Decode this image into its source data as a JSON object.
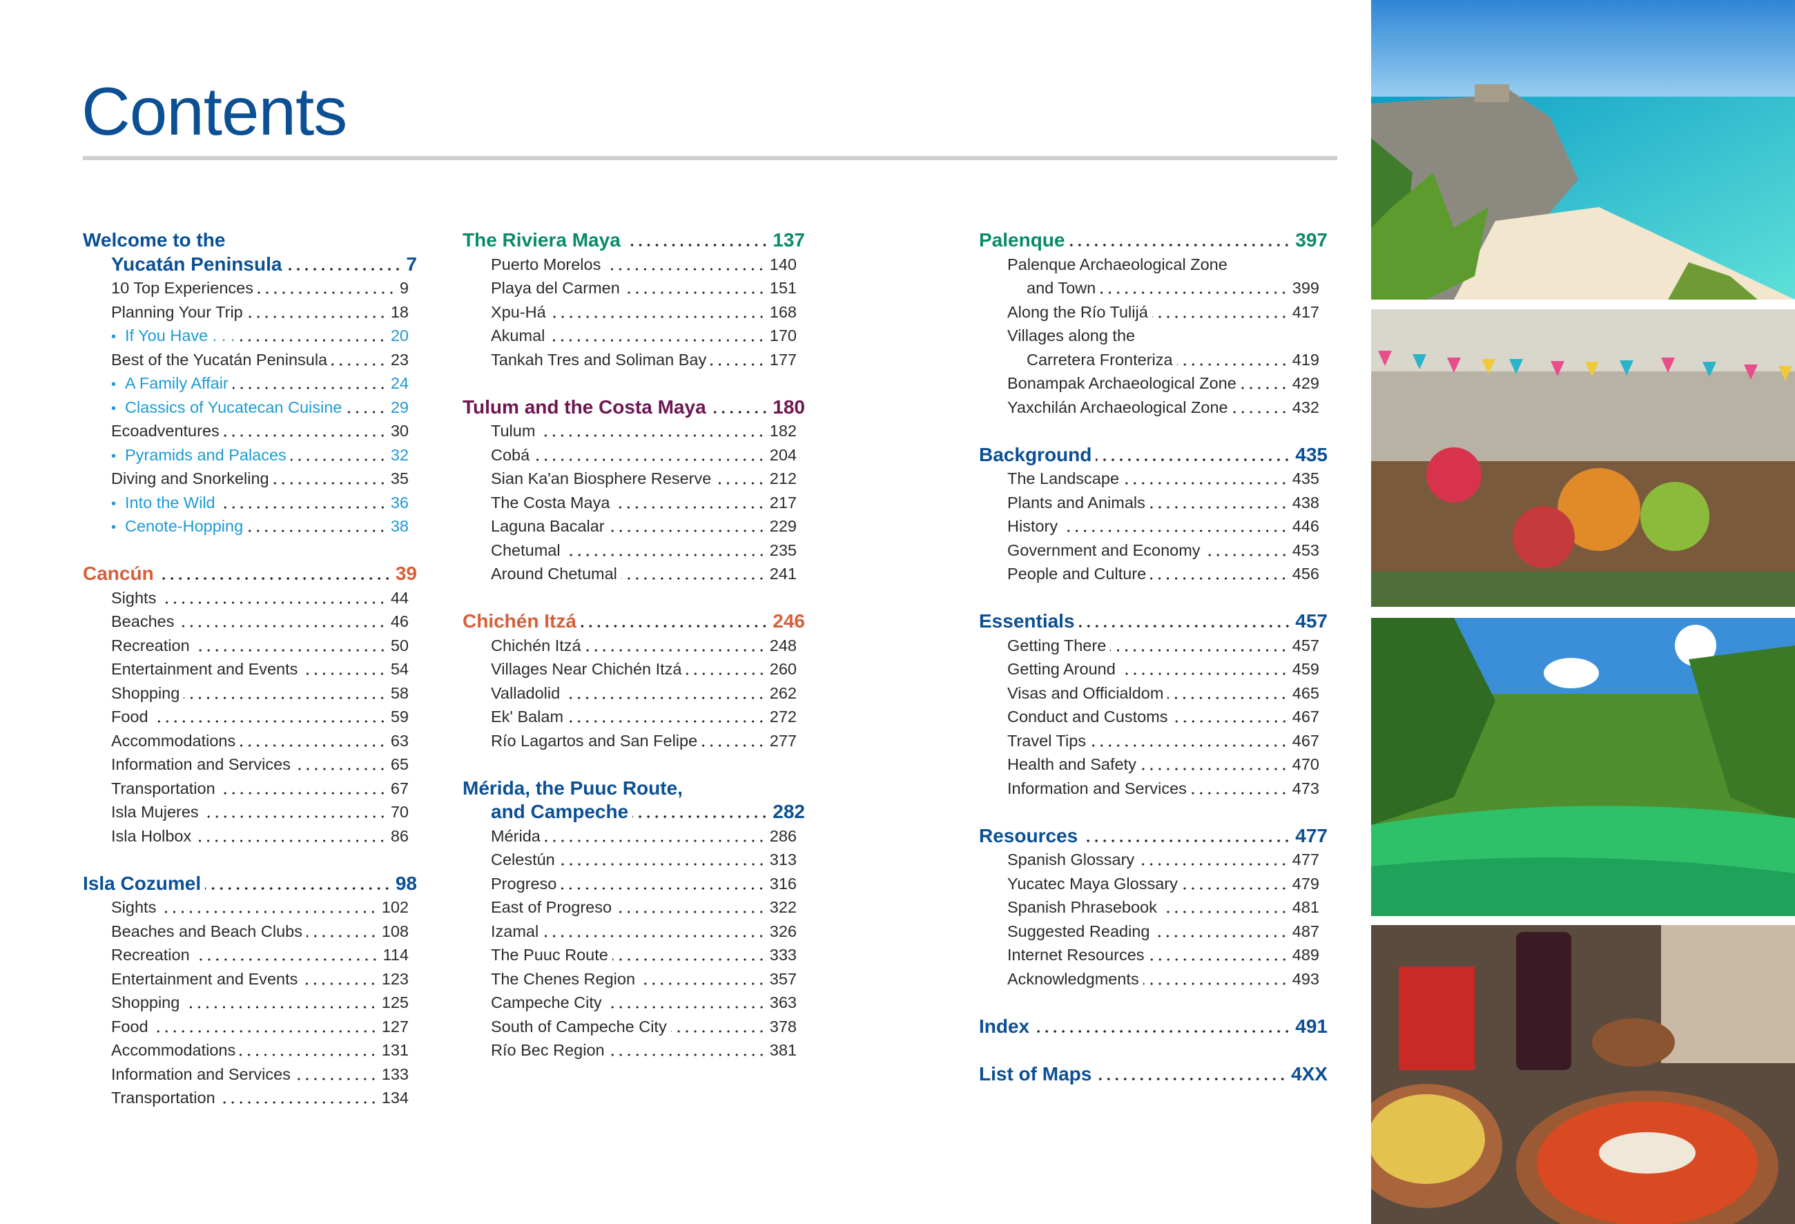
{
  "title": "Contents",
  "colors": {
    "blue": "#0b4f94",
    "green": "#0b8a6a",
    "purple": "#6d1650",
    "orange": "#d5603a",
    "sub": "#1d9ad6",
    "rule": "#cfcfcf"
  },
  "columns": [
    [
      {
        "title": "Welcome to the",
        "title2": "Yucatán Peninsula",
        "page": "7",
        "color": "blue",
        "items": [
          {
            "label": "10 Top Experiences",
            "page": "9"
          },
          {
            "label": "Planning Your Trip",
            "page": "18"
          },
          {
            "label": "If You Have . . .",
            "page": "20",
            "sub": true
          },
          {
            "label": "Best of the Yucatán Peninsula",
            "page": "23"
          },
          {
            "label": "A Family Affair",
            "page": "24",
            "sub": true
          },
          {
            "label": "Classics of Yucatecan Cuisine",
            "page": "29",
            "sub": true
          },
          {
            "label": "Ecoadventures",
            "page": "30"
          },
          {
            "label": "Pyramids and Palaces",
            "page": "32",
            "sub": true
          },
          {
            "label": "Diving and Snorkeling",
            "page": "35"
          },
          {
            "label": "Into the Wild",
            "page": "36",
            "sub": true
          },
          {
            "label": "Cenote-Hopping",
            "page": "38",
            "sub": true
          }
        ]
      },
      {
        "title": "Cancún",
        "page": "39",
        "color": "orange",
        "items": [
          {
            "label": "Sights",
            "page": "44"
          },
          {
            "label": "Beaches",
            "page": "46"
          },
          {
            "label": "Recreation",
            "page": "50"
          },
          {
            "label": "Entertainment and Events",
            "page": "54"
          },
          {
            "label": "Shopping",
            "page": "58"
          },
          {
            "label": "Food",
            "page": "59"
          },
          {
            "label": "Accommodations",
            "page": "63"
          },
          {
            "label": "Information and Services",
            "page": "65"
          },
          {
            "label": "Transportation",
            "page": "67"
          },
          {
            "label": "Isla Mujeres",
            "page": "70"
          },
          {
            "label": "Isla Holbox",
            "page": "86"
          }
        ]
      },
      {
        "title": "Isla Cozumel",
        "page": "98",
        "color": "blue",
        "items": [
          {
            "label": "Sights",
            "page": "102"
          },
          {
            "label": "Beaches and Beach Clubs",
            "page": "108"
          },
          {
            "label": "Recreation",
            "page": "114"
          },
          {
            "label": "Entertainment and Events",
            "page": "123"
          },
          {
            "label": "Shopping",
            "page": "125"
          },
          {
            "label": "Food",
            "page": "127"
          },
          {
            "label": "Accommodations",
            "page": "131"
          },
          {
            "label": "Information and Services",
            "page": "133"
          },
          {
            "label": "Transportation",
            "page": "134"
          }
        ]
      }
    ],
    [
      {
        "title": "The Riviera Maya",
        "page": "137",
        "color": "green",
        "items": [
          {
            "label": "Puerto Morelos",
            "page": "140"
          },
          {
            "label": "Playa del Carmen",
            "page": "151"
          },
          {
            "label": "Xpu-Há",
            "page": "168"
          },
          {
            "label": "Akumal",
            "page": "170"
          },
          {
            "label": "Tankah Tres and Soliman Bay",
            "page": "177"
          }
        ]
      },
      {
        "title": "Tulum and the Costa Maya",
        "page": "180",
        "color": "purple",
        "items": [
          {
            "label": "Tulum",
            "page": "182"
          },
          {
            "label": "Cobá",
            "page": "204"
          },
          {
            "label": "Sian Ka'an Biosphere Reserve",
            "page": "212"
          },
          {
            "label": "The Costa Maya",
            "page": "217"
          },
          {
            "label": "Laguna Bacalar",
            "page": "229"
          },
          {
            "label": "Chetumal",
            "page": "235"
          },
          {
            "label": "Around Chetumal",
            "page": "241"
          }
        ]
      },
      {
        "title": "Chichén Itzá",
        "page": "246",
        "color": "orange",
        "items": [
          {
            "label": "Chichén Itzá",
            "page": "248"
          },
          {
            "label": "Villages Near Chichén Itzá",
            "page": "260"
          },
          {
            "label": "Valladolid",
            "page": "262"
          },
          {
            "label": "Ek' Balam",
            "page": "272"
          },
          {
            "label": "Río Lagartos and San Felipe",
            "page": "277"
          }
        ]
      },
      {
        "title": "Mérida, the Puuc Route,",
        "title2": "and Campeche",
        "page": "282",
        "color": "blue",
        "items": [
          {
            "label": "Mérida",
            "page": "286"
          },
          {
            "label": "Celestún",
            "page": "313"
          },
          {
            "label": "Progreso",
            "page": "316"
          },
          {
            "label": "East of Progreso",
            "page": "322"
          },
          {
            "label": "Izamal",
            "page": "326"
          },
          {
            "label": "The Puuc Route",
            "page": "333"
          },
          {
            "label": "The Chenes Region",
            "page": "357"
          },
          {
            "label": "Campeche City",
            "page": "363"
          },
          {
            "label": "South of Campeche City",
            "page": "378"
          },
          {
            "label": "Río Bec Region",
            "page": "381"
          }
        ]
      }
    ],
    [
      {
        "title": "Palenque",
        "page": "397",
        "color": "green",
        "items": [
          {
            "label": "Palenque Archaeological Zone",
            "label2": "and Town",
            "page": "399"
          },
          {
            "label": "Along the Río Tulijá",
            "page": "417"
          },
          {
            "label": "Villages along the",
            "label2": "Carretera Fronteriza",
            "page": "419"
          },
          {
            "label": "Bonampak Archaeological Zone",
            "page": "429"
          },
          {
            "label": "Yaxchilán Archaeological Zone",
            "page": "432"
          }
        ]
      },
      {
        "title": "Background",
        "page": "435",
        "color": "blue",
        "items": [
          {
            "label": "The Landscape",
            "page": "435"
          },
          {
            "label": "Plants and Animals",
            "page": "438"
          },
          {
            "label": "History",
            "page": "446"
          },
          {
            "label": "Government and Economy",
            "page": "453"
          },
          {
            "label": "People and Culture",
            "page": "456"
          }
        ]
      },
      {
        "title": "Essentials",
        "page": "457",
        "color": "blue",
        "items": [
          {
            "label": "Getting There",
            "page": "457"
          },
          {
            "label": "Getting Around",
            "page": "459"
          },
          {
            "label": "Visas and Officialdom",
            "page": "465"
          },
          {
            "label": "Conduct and Customs",
            "page": "467"
          },
          {
            "label": "Travel Tips",
            "page": "467"
          },
          {
            "label": "Health and Safety",
            "page": "470"
          },
          {
            "label": "Information and Services",
            "page": "473"
          }
        ]
      },
      {
        "title": "Resources",
        "page": "477",
        "color": "blue",
        "items": [
          {
            "label": "Spanish Glossary",
            "page": "477"
          },
          {
            "label": "Yucatec Maya Glossary",
            "page": "479"
          },
          {
            "label": "Spanish Phrasebook",
            "page": "481"
          },
          {
            "label": "Suggested Reading",
            "page": "487"
          },
          {
            "label": "Internet Resources",
            "page": "489"
          },
          {
            "label": "Acknowledgments",
            "page": "493"
          }
        ]
      },
      {
        "title": "Index",
        "page": "491",
        "color": "blue",
        "items": []
      },
      {
        "title": "List of Maps",
        "page": "4XX",
        "color": "blue",
        "items": []
      }
    ]
  ]
}
